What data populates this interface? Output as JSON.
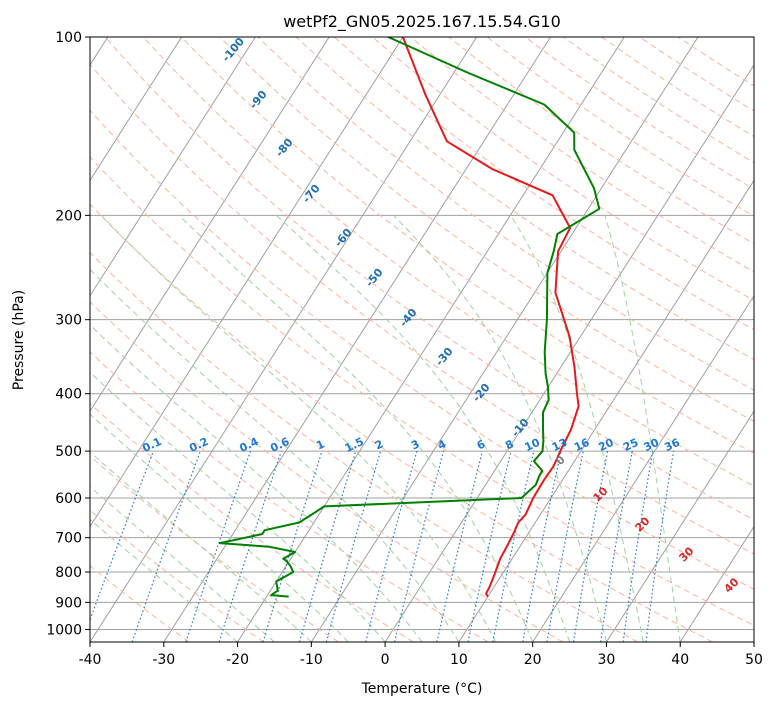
{
  "chart_data": {
    "type": "line",
    "subtype": "skew-t log-p",
    "title": "wetPf2_GN05.2025.167.15.54.G10",
    "xlabel": "Temperature (°C)",
    "ylabel": "Pressure (hPa)",
    "xlim": [
      -40,
      50
    ],
    "ylim": [
      1050,
      100
    ],
    "y_scale": "log",
    "grid": true,
    "x_ticks": [
      "-40",
      "-30",
      "-20",
      "-10",
      "0",
      "10",
      "20",
      "30",
      "40",
      "50"
    ],
    "y_ticks": [
      "100",
      "200",
      "300",
      "400",
      "500",
      "600",
      "700",
      "800",
      "900",
      "1000"
    ],
    "colors": {
      "temperature": "#e41a1c",
      "dewpoint": "#008000",
      "isotherm": "#a0a0a0",
      "dry_adiabat": "#ffb39a",
      "moist_adiabat": "#9fd39f",
      "mixing_ratio": "#1f78d4",
      "dry_label": "#1f6fb0",
      "moist_label": "#d62728"
    },
    "series": [
      {
        "color": "temperature",
        "x": [
          10,
          9.5,
          9.4,
          9,
          8.4,
          8.2,
          8,
          7.7,
          8,
          7.8,
          7.6,
          7.5,
          7.6,
          7.2,
          6.8,
          5.8,
          4.5,
          1.8,
          -1.5,
          -7.2,
          -10.4,
          -10.8,
          -16,
          -26.5,
          -35,
          -42,
          -50
        ],
        "y": [
          880,
          870,
          850,
          810,
          760,
          720,
          690,
          660,
          640,
          620,
          600,
          560,
          530,
          500,
          460,
          420,
          400,
          360,
          320,
          270,
          230,
          210,
          185,
          167,
          150,
          125,
          100
        ]
      },
      {
        "color": "dewpoint",
        "x": [
          -17,
          -19.5,
          -19,
          -20,
          -18.5,
          -19.5,
          -20.5,
          -21,
          -20,
          -24,
          -31,
          -28,
          -26,
          -26,
          -22,
          -21,
          -20,
          6,
          6.8,
          6.5,
          6.5,
          4.5,
          4.8,
          4,
          3,
          1.5,
          1.2,
          0,
          -1.5,
          -3.5,
          -6,
          -10,
          -11,
          -12,
          -8.5,
          -11,
          -14.5,
          -17,
          -18.5,
          -25,
          -38,
          -52
        ],
        "y": [
          880,
          875,
          860,
          830,
          800,
          780,
          765,
          760,
          740,
          725,
          715,
          700,
          690,
          680,
          660,
          640,
          620,
          600,
          570,
          550,
          540,
          520,
          500,
          480,
          460,
          430,
          410,
          390,
          370,
          340,
          300,
          250,
          230,
          215,
          195,
          180,
          165,
          155,
          145,
          130,
          115,
          100
        ]
      }
    ],
    "mixing_ratio_labels": [
      "0.1",
      "0.2",
      "0.4",
      "0.6",
      "1",
      "1.5",
      "2",
      "3",
      "4",
      "6",
      "8",
      "10",
      "13",
      "16",
      "20",
      "25",
      "30",
      "36"
    ],
    "dry_adiabat_labels": [
      "-100",
      "-90",
      "-80",
      "-70",
      "-60",
      "-50",
      "-40",
      "-30",
      "-20",
      "-10"
    ],
    "moist_adiabat_labels": [
      "0",
      "10",
      "20",
      "30",
      "40"
    ]
  }
}
